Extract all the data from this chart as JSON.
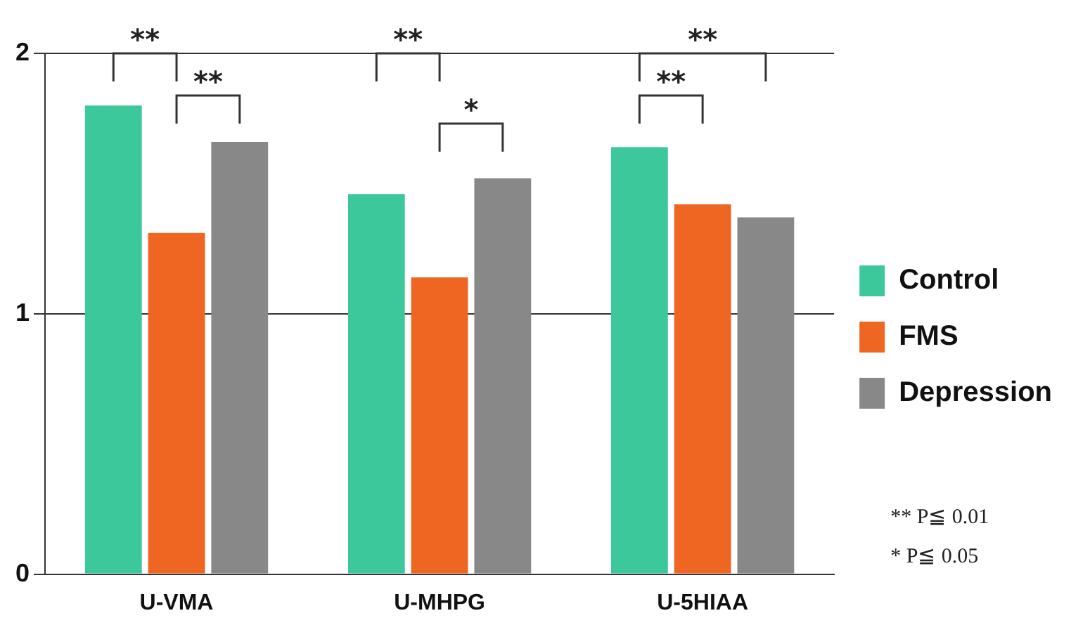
{
  "chart_data": {
    "type": "bar",
    "categories": [
      "U-VMA",
      "U-MHPG",
      "U-5HIAA"
    ],
    "series": [
      {
        "name": "Control",
        "color": "#3cc89a",
        "values": [
          1.8,
          1.46,
          1.64
        ]
      },
      {
        "name": "FMS",
        "color": "#ee6622",
        "values": [
          1.31,
          1.14,
          1.42
        ]
      },
      {
        "name": "Depression",
        "color": "#888888",
        "values": [
          1.66,
          1.52,
          1.37
        ]
      }
    ],
    "ylim": [
      0,
      2
    ],
    "yticks": [
      0,
      1,
      2
    ],
    "grid": "y",
    "legend": "right",
    "annotations": [
      "**",
      "**",
      "**",
      "*",
      "**",
      "**",
      "** P≦ 0.01",
      "* P≦ 0.05"
    ]
  }
}
